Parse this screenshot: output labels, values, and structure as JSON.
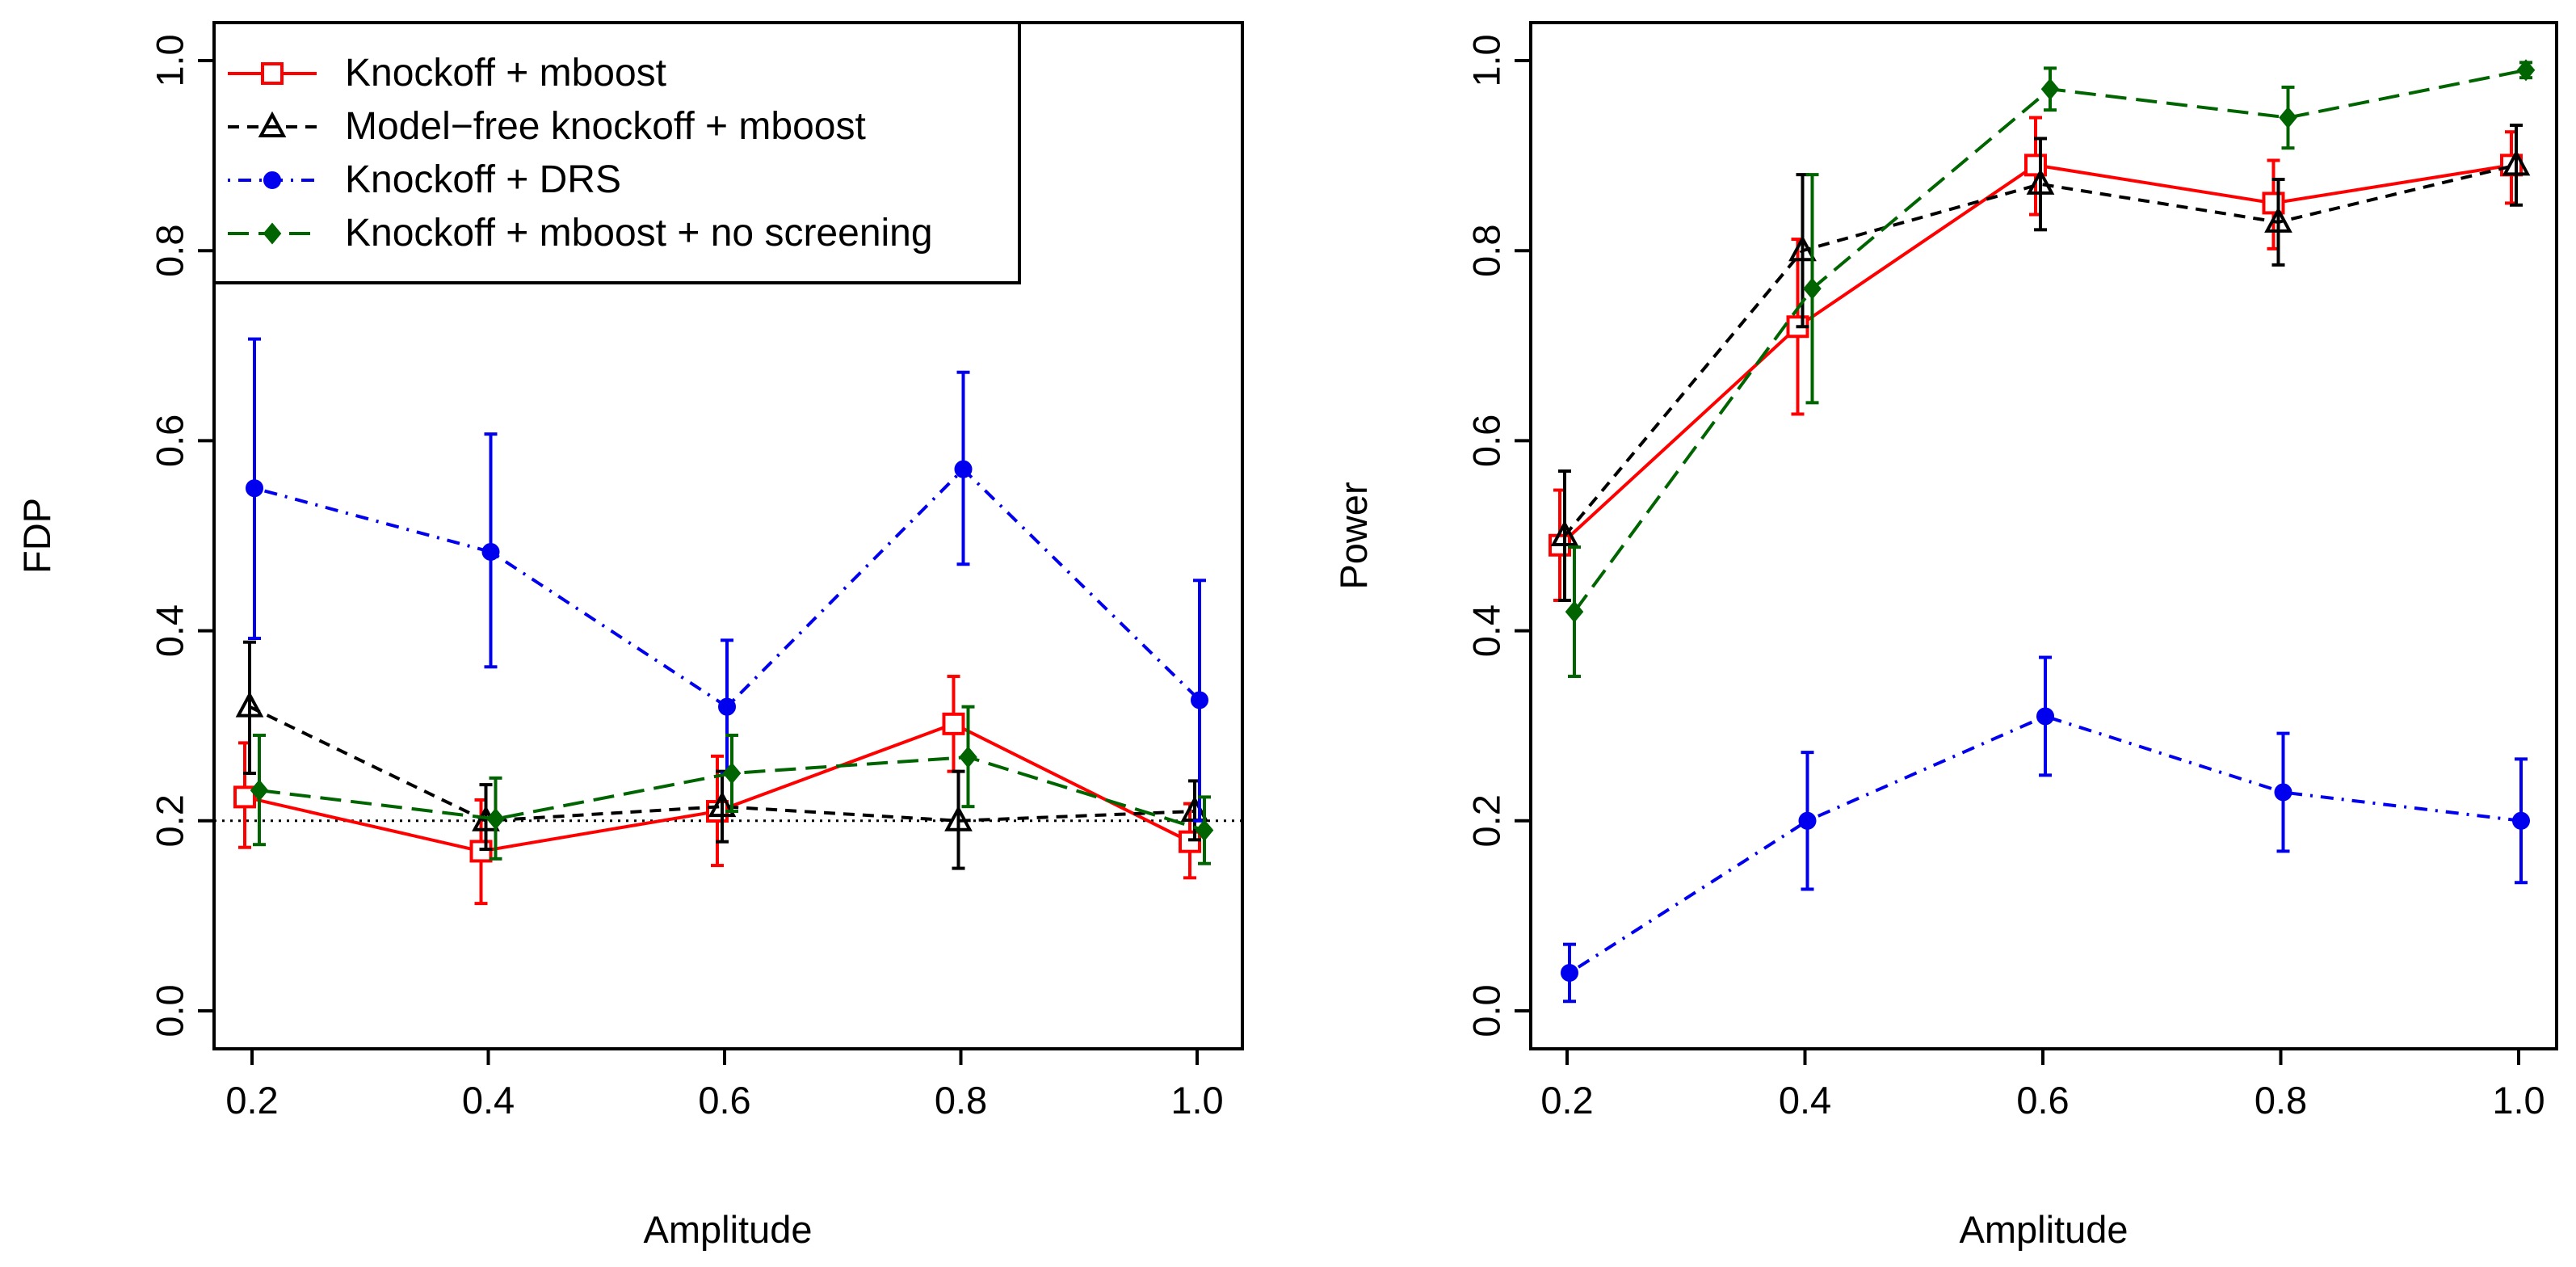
{
  "chart_data": [
    {
      "type": "line",
      "panel": "left",
      "xlabel": "Amplitude",
      "ylabel": "FDP",
      "xlim": [
        0.2,
        1.0
      ],
      "ylim": [
        0.0,
        1.0
      ],
      "x": [
        0.2,
        0.4,
        0.6,
        0.8,
        1.0
      ],
      "x_tick_labels": [
        "0.2",
        "0.4",
        "0.6",
        "0.8",
        "1.0"
      ],
      "y_tick_labels": [
        "0.0",
        "0.2",
        "0.4",
        "0.6",
        "0.8",
        "1.0"
      ],
      "reference_line": {
        "y": 0.2,
        "style": "dotted"
      },
      "legend_position": "top-left",
      "series": [
        {
          "name": "Knockoff + mboost",
          "color": "#ff0000",
          "marker": "square",
          "line": "solid",
          "values": [
            0.225,
            0.168,
            0.21,
            0.302,
            0.178
          ],
          "lower": [
            0.172,
            0.113,
            0.153,
            0.252,
            0.14
          ],
          "upper": [
            0.282,
            0.222,
            0.268,
            0.352,
            0.218
          ]
        },
        {
          "name": "Model−free knockoff + mboost",
          "color": "#000000",
          "marker": "triangle",
          "line": "dashed",
          "values": [
            0.32,
            0.2,
            0.215,
            0.2,
            0.21
          ],
          "lower": [
            0.25,
            0.17,
            0.178,
            0.15,
            0.18
          ],
          "upper": [
            0.388,
            0.238,
            0.252,
            0.252,
            0.242
          ]
        },
        {
          "name": "Knockoff + DRS",
          "color": "#0000ee",
          "marker": "circle",
          "line": "dotdash",
          "values": [
            0.55,
            0.483,
            0.32,
            0.57,
            0.327
          ],
          "lower": [
            0.392,
            0.362,
            0.25,
            0.47,
            0.2
          ],
          "upper": [
            0.707,
            0.607,
            0.39,
            0.672,
            0.453
          ]
        },
        {
          "name": "Knockoff + mboost + no screening",
          "color": "#006400",
          "marker": "diamond",
          "line": "longdash",
          "values": [
            0.232,
            0.202,
            0.25,
            0.267,
            0.19
          ],
          "lower": [
            0.175,
            0.16,
            0.21,
            0.215,
            0.155
          ],
          "upper": [
            0.29,
            0.245,
            0.29,
            0.32,
            0.225
          ]
        }
      ]
    },
    {
      "type": "line",
      "panel": "right",
      "xlabel": "Amplitude",
      "ylabel": "Power",
      "xlim": [
        0.2,
        1.0
      ],
      "ylim": [
        0.0,
        1.0
      ],
      "x": [
        0.2,
        0.4,
        0.6,
        0.8,
        1.0
      ],
      "x_tick_labels": [
        "0.2",
        "0.4",
        "0.6",
        "0.8",
        "1.0"
      ],
      "y_tick_labels": [
        "0.0",
        "0.2",
        "0.4",
        "0.6",
        "0.8",
        "1.0"
      ],
      "series": [
        {
          "name": "Knockoff + mboost",
          "color": "#ff0000",
          "marker": "square",
          "line": "solid",
          "values": [
            0.49,
            0.72,
            0.89,
            0.85,
            0.89
          ],
          "lower": [
            0.432,
            0.628,
            0.838,
            0.802,
            0.85
          ],
          "upper": [
            0.548,
            0.812,
            0.94,
            0.895,
            0.925
          ]
        },
        {
          "name": "Model−free knockoff + mboost",
          "color": "#000000",
          "marker": "triangle",
          "line": "dashed",
          "values": [
            0.5,
            0.8,
            0.87,
            0.83,
            0.89
          ],
          "lower": [
            0.432,
            0.72,
            0.822,
            0.785,
            0.848
          ],
          "upper": [
            0.568,
            0.88,
            0.918,
            0.875,
            0.932
          ]
        },
        {
          "name": "Knockoff + DRS",
          "color": "#0000ee",
          "marker": "circle",
          "line": "dotdash",
          "values": [
            0.04,
            0.2,
            0.31,
            0.23,
            0.2
          ],
          "lower": [
            0.01,
            0.128,
            0.248,
            0.168,
            0.135
          ],
          "upper": [
            0.07,
            0.272,
            0.372,
            0.292,
            0.265
          ]
        },
        {
          "name": "Knockoff + mboost + no screening",
          "color": "#006400",
          "marker": "diamond",
          "line": "longdash",
          "values": [
            0.42,
            0.76,
            0.97,
            0.94,
            0.99
          ],
          "lower": [
            0.352,
            0.64,
            0.948,
            0.908,
            0.982
          ],
          "upper": [
            0.488,
            0.88,
            0.992,
            0.972,
            0.998
          ]
        }
      ]
    }
  ]
}
